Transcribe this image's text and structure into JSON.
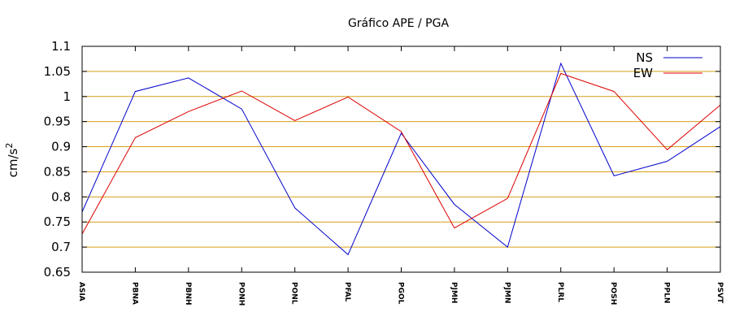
{
  "chart_data": {
    "type": "line",
    "title": "Gráfico  APE / PGA",
    "xlabel": "",
    "ylabel": "cm/s",
    "ylabel_exponent": "2",
    "ylim": [
      0.65,
      1.1
    ],
    "yticks": [
      "1.1",
      "1.05",
      "1",
      "0.95",
      "0.9",
      "0.85",
      "0.8",
      "0.75",
      "0.7",
      "0.65"
    ],
    "ytick_values": [
      1.1,
      1.05,
      1.0,
      0.95,
      0.9,
      0.85,
      0.8,
      0.75,
      0.7,
      0.65
    ],
    "grid": true,
    "legend_position": "top-right",
    "categories": [
      "ASIA",
      "PBNA",
      "PBNH",
      "PONH",
      "PONL",
      "PFAL",
      "PGOL",
      "PJMH",
      "PJMN",
      "PLRL",
      "POSH",
      "PPLN",
      "PSVT"
    ],
    "series": [
      {
        "name": "NS",
        "color": "#0000cc",
        "values": [
          0.77,
          1.01,
          1.037,
          0.975,
          0.778,
          0.685,
          0.927,
          0.785,
          0.7,
          1.066,
          0.842,
          0.871,
          0.94
        ]
      },
      {
        "name": "EW",
        "color": "#dd0000",
        "values": [
          0.726,
          0.918,
          0.97,
          1.011,
          0.952,
          0.999,
          0.93,
          0.738,
          0.797,
          1.046,
          1.01,
          0.894,
          0.983
        ]
      }
    ],
    "grid_color": "#d4a017"
  }
}
